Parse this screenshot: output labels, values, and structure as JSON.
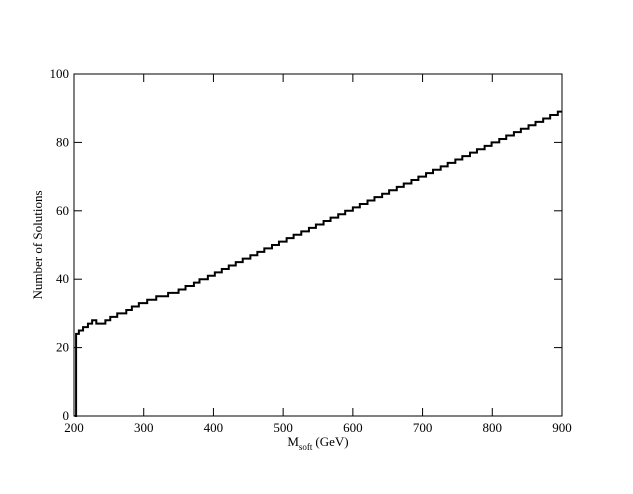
{
  "chart_data": {
    "type": "line",
    "step": "post",
    "ylabel": "Number of Solutions",
    "xlabel": {
      "main": "M",
      "sub": "soft",
      "unit": "(GeV)"
    },
    "x": [
      201,
      203,
      207,
      213,
      220,
      226,
      232,
      245,
      252,
      262,
      275,
      283,
      293,
      305,
      318,
      335,
      350,
      360,
      372,
      380,
      392,
      402,
      412,
      422,
      432,
      442,
      453,
      463,
      473,
      484,
      494,
      505,
      515,
      526,
      537,
      547,
      558,
      568,
      579,
      589,
      600,
      610,
      621,
      631,
      642,
      652,
      663,
      673,
      684,
      694,
      705,
      715,
      726,
      736,
      747,
      757,
      768,
      778,
      789,
      799,
      810,
      820,
      831,
      841,
      852,
      862,
      873,
      883,
      894,
      900
    ],
    "series": [
      {
        "color": "#000000",
        "values": [
          0,
          24,
          25,
          26,
          27,
          28,
          27,
          28,
          29,
          30,
          31,
          32,
          33,
          34,
          35,
          36,
          37,
          38,
          39,
          40,
          41,
          42,
          43,
          44,
          45,
          46,
          47,
          48,
          49,
          50,
          51,
          52,
          53,
          54,
          55,
          56,
          57,
          58,
          59,
          60,
          61,
          62,
          63,
          64,
          65,
          66,
          67,
          68,
          69,
          70,
          71,
          72,
          73,
          74,
          75,
          76,
          77,
          78,
          79,
          80,
          81,
          82,
          83,
          84,
          85,
          86,
          87,
          88,
          89,
          89
        ]
      }
    ],
    "xlim": [
      200,
      900
    ],
    "xticks": [
      200,
      300,
      400,
      500,
      600,
      700,
      800,
      900
    ],
    "ylim": [
      0,
      100
    ],
    "yticks": [
      0,
      20,
      40,
      60,
      80,
      100
    ]
  }
}
